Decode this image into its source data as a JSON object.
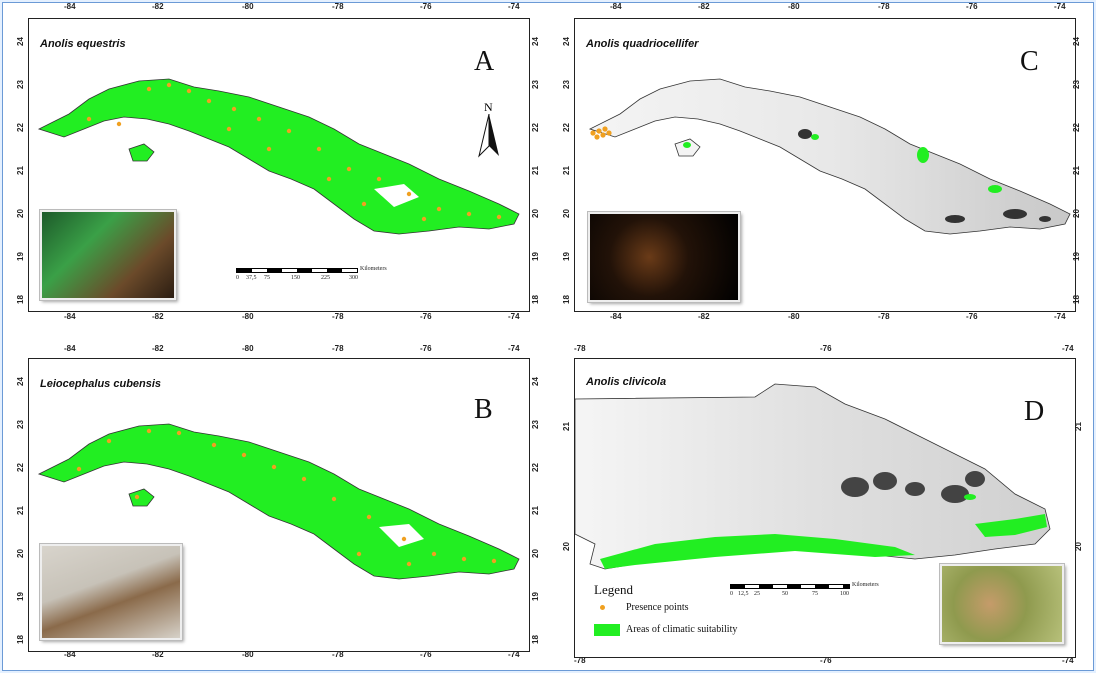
{
  "panels": {
    "a": {
      "species": "Anolis equestris",
      "letter": "A"
    },
    "b": {
      "species": "Leiocephalus cubensis",
      "letter": "B"
    },
    "c": {
      "species": "Anolis quadriocellifer",
      "letter": "C"
    },
    "d": {
      "species": "Anolis clivicola",
      "letter": "D"
    }
  },
  "axes_cuba": {
    "lon_ticks": [
      "-84",
      "-82",
      "-80",
      "-78",
      "-76",
      "-74"
    ],
    "lat_ticks": [
      "24",
      "23",
      "22",
      "21",
      "20",
      "19",
      "18"
    ]
  },
  "axes_d": {
    "lon_ticks": [
      "-78",
      "-76",
      "-74"
    ],
    "lat_ticks": [
      "21",
      "20"
    ]
  },
  "north_arrow": "N",
  "scale_bar_a": {
    "unit": "Kilometers",
    "labels": [
      "0",
      "37,5",
      "75",
      "150",
      "225",
      "300"
    ]
  },
  "scale_bar_d": {
    "unit": "Kilometers",
    "labels": [
      "0",
      "12,5",
      "25",
      "50",
      "75",
      "100"
    ]
  },
  "legend": {
    "title": "Legend",
    "presence": "Presence points",
    "suitability": "Areas of climatic suitability"
  },
  "colors": {
    "suitability": "#22ee22",
    "presence": "#f0a020",
    "background": "#e4f0ff",
    "frame": "#6b9ad6"
  }
}
